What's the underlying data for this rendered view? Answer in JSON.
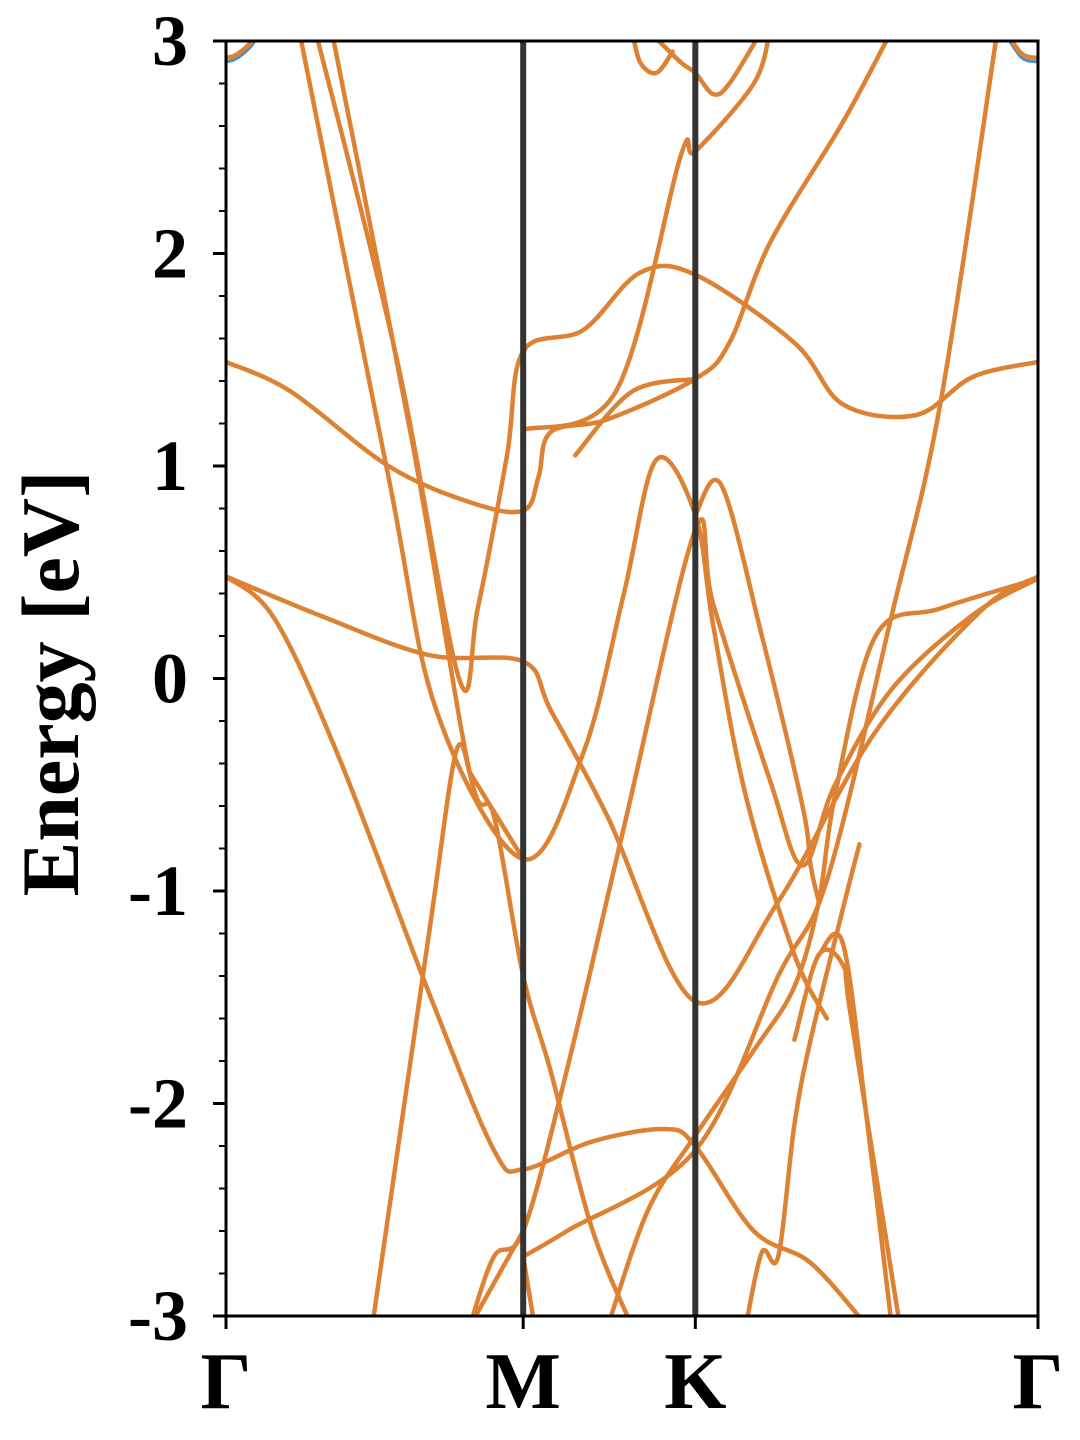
{
  "chart_data": {
    "type": "line",
    "title": "",
    "xlabel": "",
    "ylabel": "Energy [eV]",
    "xlim": [
      0,
      1
    ],
    "ylim": [
      -3,
      3
    ],
    "yticks": [
      "-3",
      "-2",
      "-1",
      "0",
      "1",
      "2",
      "3"
    ],
    "kpoints": [
      {
        "label": "Γ",
        "x": 0.0
      },
      {
        "label": "M",
        "x": 0.366
      },
      {
        "label": "K",
        "x": 0.578
      },
      {
        "label": "Γ",
        "x": 1.0
      }
    ],
    "grid": false,
    "colors": {
      "line": "#dd8232",
      "spin_alt": "#4f8ec4",
      "vline": "#333333",
      "axes": "#000000"
    },
    "series": [
      {
        "values": [
          [
            0,
            0.48
          ],
          [
            0.12,
            0.29
          ],
          [
            0.25,
            0.11
          ],
          [
            0.366,
            0.08
          ],
          [
            0.4,
            -0.15
          ],
          [
            0.47,
            -0.65
          ],
          [
            0.578,
            -1.52
          ],
          [
            0.68,
            -1.05
          ],
          [
            0.8,
            -0.25
          ],
          [
            0.93,
            0.32
          ],
          [
            1.0,
            0.48
          ]
        ]
      },
      {
        "values": [
          [
            0,
            0.48
          ],
          [
            0.06,
            0.28
          ],
          [
            0.14,
            -0.38
          ],
          [
            0.25,
            -1.48
          ],
          [
            0.33,
            -2.22
          ],
          [
            0.366,
            -2.31
          ],
          [
            0.45,
            -2.18
          ],
          [
            0.54,
            -2.12
          ],
          [
            0.578,
            -2.2
          ],
          [
            0.65,
            -2.6
          ],
          [
            0.72,
            -2.75
          ],
          [
            0.79,
            -3.05
          ]
        ]
      },
      {
        "values": [
          [
            0,
            1.49
          ],
          [
            0.08,
            1.35
          ],
          [
            0.2,
            1.0
          ],
          [
            0.3,
            0.83
          ],
          [
            0.366,
            0.79
          ],
          [
            0.385,
            0.95
          ],
          [
            0.4,
            1.16
          ],
          [
            0.47,
            1.22
          ],
          [
            0.578,
            1.41
          ],
          [
            0.62,
            1.58
          ],
          [
            0.67,
            2.05
          ],
          [
            0.76,
            2.62
          ],
          [
            0.82,
            3.05
          ]
        ]
      },
      {
        "values": [
          [
            -0.01,
            2.92
          ],
          [
            0.01,
            2.93
          ],
          [
            0.03,
            2.99
          ],
          [
            0.04,
            3.05
          ]
        ]
      },
      {
        "values": [
          [
            0.96,
            3.05
          ],
          [
            0.98,
            2.94
          ],
          [
            1.0,
            2.92
          ]
        ]
      },
      {
        "values": [
          [
            0.11,
            3.05
          ],
          [
            0.21,
            1.51
          ],
          [
            0.287,
            0.0
          ],
          [
            0.31,
            0.33
          ],
          [
            0.346,
            1.05
          ],
          [
            0.366,
            1.54
          ],
          [
            0.44,
            1.64
          ],
          [
            0.51,
            1.91
          ],
          [
            0.578,
            1.9
          ],
          [
            0.7,
            1.58
          ],
          [
            0.76,
            1.29
          ],
          [
            0.85,
            1.24
          ],
          [
            0.92,
            1.42
          ],
          [
            1.0,
            1.49
          ]
        ]
      },
      {
        "values": [
          [
            0.13,
            3.05
          ],
          [
            0.23,
            1.1
          ],
          [
            0.3,
            -0.44
          ],
          [
            0.33,
            -0.65
          ],
          [
            0.366,
            -1.4
          ],
          [
            0.4,
            -1.85
          ],
          [
            0.45,
            -2.58
          ],
          [
            0.5,
            -3.05
          ]
        ]
      },
      {
        "values": [
          [
            0.09,
            3.05
          ],
          [
            0.2,
            0.95
          ],
          [
            0.26,
            -0.16
          ],
          [
            0.366,
            -0.85
          ],
          [
            0.44,
            -0.35
          ],
          [
            0.49,
            0.4
          ],
          [
            0.53,
            1.03
          ],
          [
            0.578,
            0.77
          ],
          [
            0.6,
            0.25
          ],
          [
            0.64,
            -0.55
          ],
          [
            0.7,
            -1.3
          ],
          [
            0.74,
            -1.6
          ]
        ]
      },
      {
        "values": [
          [
            0.3,
            -0.44
          ],
          [
            0.366,
            -0.85
          ]
        ]
      },
      {
        "values": [
          [
            0.578,
            0.77
          ],
          [
            0.61,
            0.91
          ],
          [
            0.66,
            0.2
          ],
          [
            0.71,
            -0.6
          ],
          [
            0.72,
            -0.88
          ],
          [
            0.73,
            -1.05
          ]
        ]
      },
      {
        "values": [
          [
            0.18,
            -3.05
          ],
          [
            0.25,
            -1.2
          ],
          [
            0.283,
            -0.35
          ],
          [
            0.3,
            -0.44
          ]
        ]
      },
      {
        "values": [
          [
            0.3,
            -3.05
          ],
          [
            0.33,
            -2.72
          ],
          [
            0.366,
            -2.6
          ],
          [
            0.42,
            -1.84
          ],
          [
            0.49,
            -0.7
          ],
          [
            0.578,
            0.7
          ],
          [
            0.6,
            0.35
          ],
          [
            0.67,
            -0.48
          ],
          [
            0.71,
            -0.88
          ],
          [
            0.75,
            -0.5
          ],
          [
            0.82,
            -0.05
          ],
          [
            0.92,
            0.3
          ],
          [
            1.0,
            0.47
          ]
        ]
      },
      {
        "values": [
          [
            0.366,
            -2.72
          ],
          [
            0.42,
            -2.6
          ],
          [
            0.578,
            -2.22
          ],
          [
            0.68,
            -1.4
          ],
          [
            0.74,
            -0.95
          ],
          [
            0.82,
            0.3
          ],
          [
            0.88,
            1.3
          ],
          [
            0.95,
            3.05
          ]
        ]
      },
      {
        "values": [
          [
            0.366,
            -2.72
          ],
          [
            0.38,
            -3.05
          ]
        ]
      },
      {
        "values": [
          [
            0.3,
            -3.05
          ],
          [
            0.366,
            -2.6
          ]
        ]
      },
      {
        "values": [
          [
            0.47,
            -3.05
          ],
          [
            0.52,
            -2.5
          ],
          [
            0.578,
            -2.15
          ],
          [
            0.65,
            -1.75
          ],
          [
            0.7,
            -1.45
          ],
          [
            0.73,
            -1.05
          ],
          [
            0.75,
            -0.55
          ],
          [
            0.8,
            0.2
          ],
          [
            0.88,
            0.33
          ],
          [
            1.0,
            0.47
          ]
        ]
      },
      {
        "values": [
          [
            0.52,
            3.05
          ],
          [
            0.56,
            2.9
          ],
          [
            0.578,
            2.85
          ],
          [
            0.6,
            2.75
          ],
          [
            0.62,
            2.8
          ],
          [
            0.66,
            3.05
          ]
        ]
      },
      {
        "values": [
          [
            0.5,
            3.05
          ],
          [
            0.51,
            2.9
          ],
          [
            0.53,
            2.85
          ],
          [
            0.55,
            2.95
          ]
        ]
      },
      {
        "values": [
          [
            0.43,
            1.05
          ],
          [
            0.5,
            1.35
          ],
          [
            0.578,
            1.41
          ]
        ]
      },
      {
        "values": [
          [
            0.366,
            1.17
          ],
          [
            0.48,
            1.35
          ],
          [
            0.56,
            2.46
          ],
          [
            0.578,
            2.48
          ],
          [
            0.65,
            2.8
          ],
          [
            0.67,
            3.05
          ]
        ]
      },
      {
        "values": [
          [
            0.64,
            -3.05
          ],
          [
            0.66,
            -2.7
          ],
          [
            0.68,
            -2.72
          ],
          [
            0.7,
            -2.1
          ],
          [
            0.72,
            -1.7
          ],
          [
            0.76,
            -1.08
          ],
          [
            0.78,
            -0.78
          ]
        ]
      },
      {
        "values": [
          [
            0.7,
            -1.7
          ],
          [
            0.73,
            -1.3
          ],
          [
            0.76,
            -1.35
          ],
          [
            0.77,
            -1.6
          ],
          [
            0.83,
            -3.05
          ]
        ]
      },
      {
        "values": [
          [
            0.73,
            -1.3
          ],
          [
            0.76,
            -1.25
          ],
          [
            0.79,
            -2.1
          ],
          [
            0.82,
            -3.05
          ]
        ]
      }
    ]
  }
}
